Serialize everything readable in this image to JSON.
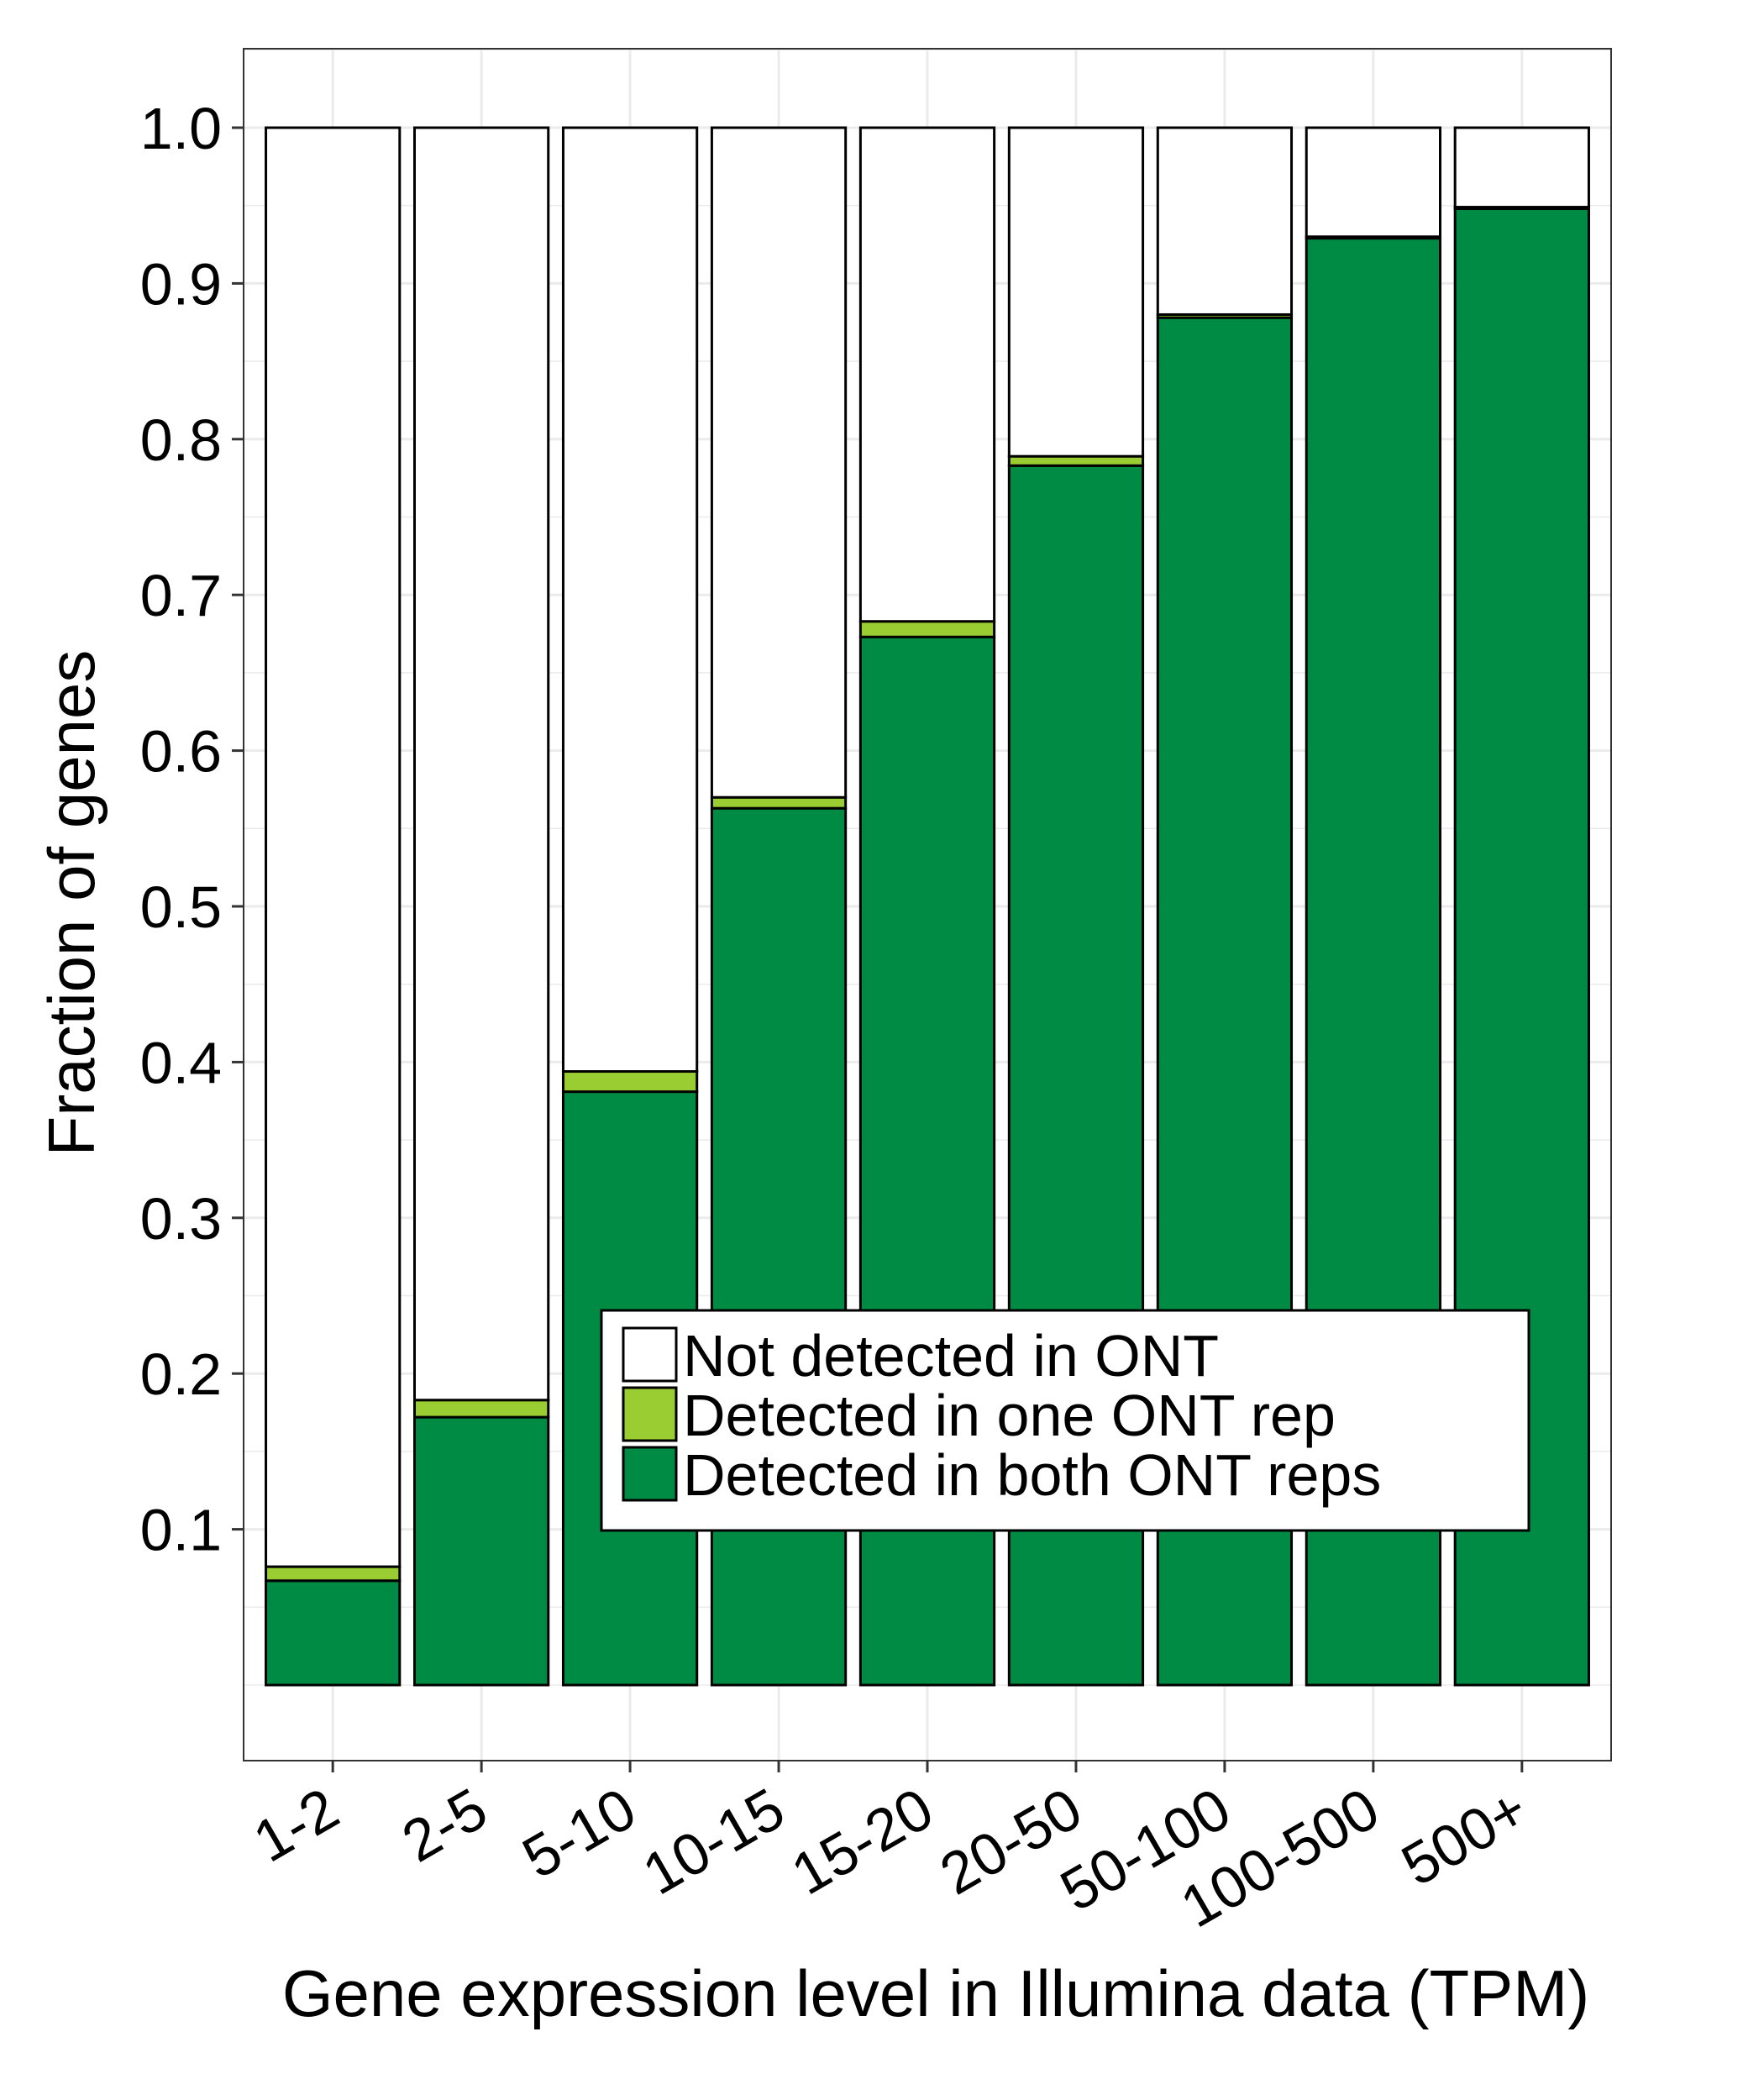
{
  "chart_data": {
    "type": "bar",
    "stacked": true,
    "title": "",
    "xlabel": "Gene expression level in Illumina data (TPM)",
    "ylabel": "Fraction of genes",
    "ylim": [
      0,
      1.05
    ],
    "yticks": [
      "0.1",
      "0.2",
      "0.3",
      "0.4",
      "0.5",
      "0.6",
      "0.7",
      "0.8",
      "0.9",
      "1.0"
    ],
    "categories": [
      "1-2",
      "2-5",
      "5-10",
      "10-15",
      "15-20",
      "20-50",
      "50-100",
      "100-500",
      "500+"
    ],
    "series": [
      {
        "name": "Detected in both ONT reps",
        "color": "#008B45",
        "values": [
          0.067,
          0.172,
          0.381,
          0.563,
          0.673,
          0.783,
          0.878,
          0.929,
          0.948
        ]
      },
      {
        "name": "Detected in one ONT rep",
        "color": "#9ACD32",
        "values": [
          0.009,
          0.011,
          0.013,
          0.007,
          0.01,
          0.006,
          0.002,
          0.001,
          0.001
        ]
      },
      {
        "name": "Not detected in ONT",
        "color": "#FFFFFF",
        "values": [
          0.924,
          0.817,
          0.606,
          0.43,
          0.317,
          0.211,
          0.12,
          0.07,
          0.051
        ]
      }
    ],
    "legend": {
      "placement": "bottom-right",
      "order": [
        "Not detected in ONT",
        "Detected in one ONT rep",
        "Detected in both ONT reps"
      ]
    },
    "grid": true,
    "panel_border": "#333333",
    "grid_color": "#EBEBEB"
  }
}
